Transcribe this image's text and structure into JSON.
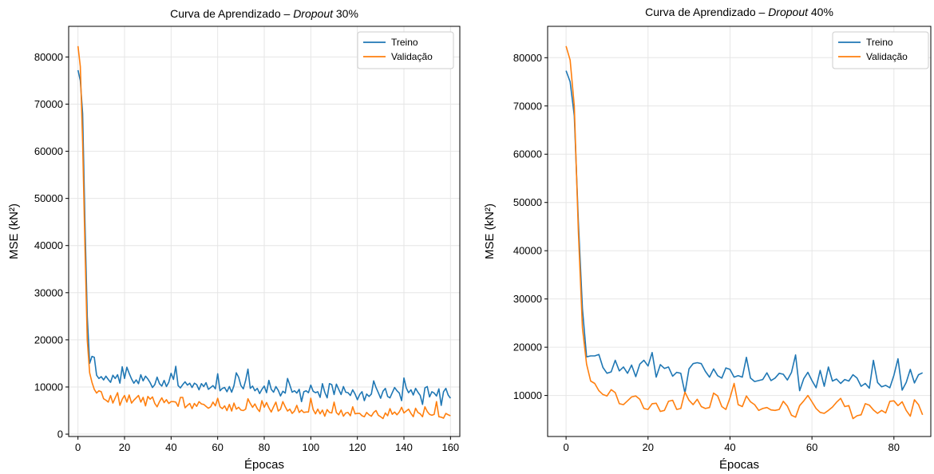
{
  "chart_data": [
    {
      "type": "line",
      "title": {
        "prefix": "Curva de Aprendizado – ",
        "italic": "Dropout",
        "suffix": " 30%"
      },
      "xlabel": "Épocas",
      "ylabel": "MSE (kN²)",
      "xlim": [
        -4,
        164
      ],
      "ylim": [
        -500,
        86500
      ],
      "xticks": [
        0,
        20,
        40,
        60,
        80,
        100,
        120,
        140,
        160
      ],
      "yticks": [
        0,
        10000,
        20000,
        30000,
        40000,
        50000,
        60000,
        70000,
        80000
      ],
      "grid": true,
      "legend_position": "upper right",
      "series": [
        {
          "name": "Treino",
          "color": "#1f77b4",
          "x": [
            0,
            1,
            2,
            3,
            4,
            5,
            6,
            7,
            8,
            9,
            10,
            11,
            12,
            13,
            14,
            15,
            16,
            17,
            18,
            19,
            20,
            21,
            22,
            23,
            24,
            25,
            26,
            27,
            28,
            29,
            30,
            31,
            32,
            33,
            34,
            35,
            36,
            37,
            38,
            39,
            40,
            41,
            42,
            43,
            44,
            45,
            46,
            47,
            48,
            49,
            50,
            51,
            52,
            53,
            54,
            55,
            56,
            57,
            58,
            59,
            60,
            61,
            62,
            63,
            64,
            65,
            66,
            67,
            68,
            69,
            70,
            71,
            72,
            73,
            74,
            75,
            76,
            77,
            78,
            79,
            80,
            81,
            82,
            83,
            84,
            85,
            86,
            87,
            88,
            89,
            90,
            91,
            92,
            93,
            94,
            95,
            96,
            97,
            98,
            99,
            100,
            101,
            102,
            103,
            104,
            105,
            106,
            107,
            108,
            109,
            110,
            111,
            112,
            113,
            114,
            115,
            116,
            117,
            118,
            119,
            120,
            121,
            122,
            123,
            124,
            125,
            126,
            127,
            128,
            129,
            130,
            131,
            132,
            133,
            134,
            135,
            136,
            137,
            138,
            139,
            140,
            141,
            142,
            143,
            144,
            145,
            146,
            147,
            148,
            149,
            150,
            151,
            152,
            153,
            154,
            155,
            156,
            157,
            158,
            159,
            160
          ],
          "y": [
            77200,
            75000,
            68000,
            45000,
            25000,
            15000,
            16500,
            16300,
            12500,
            11800,
            12200,
            11500,
            12300,
            11600,
            11000,
            12500,
            11800,
            12600,
            10800,
            14300,
            11800,
            14200,
            12900,
            11700,
            10800,
            11500,
            10700,
            12600,
            11300,
            12300,
            11700,
            10900,
            9900,
            10500,
            12100,
            10700,
            10200,
            11400,
            10100,
            11000,
            12900,
            11600,
            14400,
            10300,
            9800,
            10500,
            11100,
            10400,
            10800,
            9900,
            10800,
            10500,
            9400,
            10700,
            10100,
            10900,
            9500,
            9900,
            10300,
            9600,
            12800,
            9200,
            9700,
            9900,
            9000,
            10100,
            8900,
            10300,
            13000,
            12100,
            10300,
            9600,
            11400,
            13800,
            9700,
            10200,
            9200,
            9700,
            8600,
            9500,
            10200,
            8800,
            11400,
            9500,
            8900,
            10100,
            9300,
            8100,
            9100,
            8700,
            11800,
            10400,
            8900,
            9200,
            8700,
            9500,
            6900,
            9000,
            9200,
            8800,
            10400,
            9100,
            8800,
            9000,
            7800,
            10700,
            8900,
            7700,
            10700,
            10500,
            8400,
            10600,
            9500,
            8400,
            10100,
            8900,
            8800,
            8200,
            9400,
            8500,
            7300,
            8400,
            9000,
            7100,
            8500,
            8000,
            8500,
            11300,
            9900,
            8800,
            7600,
            9100,
            9700,
            8000,
            7700,
            8800,
            9900,
            9200,
            8700,
            7100,
            11900,
            9800,
            8800,
            9400,
            8300,
            9700,
            8900,
            8200,
            6300,
            9800,
            10100,
            7900,
            9000,
            8700,
            8100,
            9600,
            6100,
            9000,
            9700,
            8300,
            7600
          ]
        },
        {
          "name": "Validação",
          "color": "#ff7f0e",
          "x": [
            0,
            1,
            2,
            3,
            4,
            5,
            6,
            7,
            8,
            9,
            10,
            11,
            12,
            13,
            14,
            15,
            16,
            17,
            18,
            19,
            20,
            21,
            22,
            23,
            24,
            25,
            26,
            27,
            28,
            29,
            30,
            31,
            32,
            33,
            34,
            35,
            36,
            37,
            38,
            39,
            40,
            41,
            42,
            43,
            44,
            45,
            46,
            47,
            48,
            49,
            50,
            51,
            52,
            53,
            54,
            55,
            56,
            57,
            58,
            59,
            60,
            61,
            62,
            63,
            64,
            65,
            66,
            67,
            68,
            69,
            70,
            71,
            72,
            73,
            74,
            75,
            76,
            77,
            78,
            79,
            80,
            81,
            82,
            83,
            84,
            85,
            86,
            87,
            88,
            89,
            90,
            91,
            92,
            93,
            94,
            95,
            96,
            97,
            98,
            99,
            100,
            101,
            102,
            103,
            104,
            105,
            106,
            107,
            108,
            109,
            110,
            111,
            112,
            113,
            114,
            115,
            116,
            117,
            118,
            119,
            120,
            121,
            122,
            123,
            124,
            125,
            126,
            127,
            128,
            129,
            130,
            131,
            132,
            133,
            134,
            135,
            136,
            137,
            138,
            139,
            140,
            141,
            142,
            143,
            144,
            145,
            146,
            147,
            148,
            149,
            150,
            151,
            152,
            153,
            154,
            155,
            156,
            157,
            158,
            159,
            160
          ],
          "y": [
            82300,
            78000,
            62000,
            40000,
            20000,
            13000,
            11000,
            9500,
            8700,
            9200,
            9000,
            7500,
            7200,
            6800,
            8200,
            6600,
            7700,
            8800,
            6100,
            7400,
            8200,
            6800,
            8300,
            6600,
            7200,
            7700,
            8200,
            6800,
            7800,
            6000,
            8000,
            7400,
            7900,
            6500,
            5800,
            6900,
            7700,
            6700,
            7300,
            6500,
            6900,
            6900,
            6800,
            5900,
            7800,
            7800,
            5600,
            6100,
            6500,
            5400,
            6500,
            5900,
            6900,
            6400,
            6300,
            5900,
            5500,
            5800,
            6800,
            6000,
            7600,
            5800,
            5400,
            6000,
            5000,
            6300,
            4900,
            6600,
            5300,
            5700,
            5100,
            5000,
            5300,
            7500,
            6500,
            5700,
            6400,
            5400,
            4800,
            7100,
            5700,
            6700,
            5600,
            4700,
            5800,
            6800,
            4900,
            5300,
            6900,
            5800,
            4900,
            5300,
            4400,
            4900,
            6100,
            4600,
            5100,
            4600,
            4700,
            4700,
            7600,
            5200,
            4300,
            5300,
            4300,
            5100,
            3800,
            5200,
            4600,
            4500,
            6800,
            4600,
            4100,
            5100,
            3800,
            4500,
            4600,
            3900,
            5800,
            4300,
            4400,
            4400,
            3900,
            3700,
            4600,
            4100,
            3800,
            4600,
            5000,
            4000,
            3700,
            3300,
            4500,
            3900,
            5400,
            4200,
            4700,
            4100,
            4700,
            5700,
            4500,
            4900,
            5300,
            4400,
            3700,
            5500,
            4600,
            4300,
            3700,
            5800,
            4800,
            4200,
            4000,
            4200,
            6900,
            3700,
            3600,
            3400,
            4400,
            4100,
            3900
          ]
        }
      ]
    },
    {
      "type": "line",
      "title": {
        "prefix": "Curva de Aprendizado – ",
        "italic": "Dropout",
        "suffix": " 40%"
      },
      "xlabel": "Épocas",
      "ylabel": "MSE (kN²)",
      "xlim": [
        -4.5,
        89
      ],
      "ylim": [
        1500,
        86500
      ],
      "xticks": [
        0,
        20,
        40,
        60,
        80
      ],
      "yticks": [
        10000,
        20000,
        30000,
        40000,
        50000,
        60000,
        70000,
        80000
      ],
      "grid": true,
      "legend_position": "upper right",
      "series": [
        {
          "name": "Treino",
          "color": "#1f77b4",
          "x": [
            0,
            1,
            2,
            3,
            4,
            5,
            6,
            7,
            8,
            9,
            10,
            11,
            12,
            13,
            14,
            15,
            16,
            17,
            18,
            19,
            20,
            21,
            22,
            23,
            24,
            25,
            26,
            27,
            28,
            29,
            30,
            31,
            32,
            33,
            34,
            35,
            36,
            37,
            38,
            39,
            40,
            41,
            42,
            43,
            44,
            45,
            46,
            47,
            48,
            49,
            50,
            51,
            52,
            53,
            54,
            55,
            56,
            57,
            58,
            59,
            60,
            61,
            62,
            63,
            64,
            65,
            66,
            67,
            68,
            69,
            70,
            71,
            72,
            73,
            74,
            75,
            76,
            77,
            78,
            79,
            80,
            81,
            82,
            83,
            84,
            85,
            86,
            87
          ],
          "y": [
            77300,
            75000,
            68000,
            46000,
            28000,
            18000,
            18200,
            18200,
            18500,
            15800,
            14600,
            14900,
            17300,
            15100,
            15900,
            14600,
            16300,
            13900,
            16500,
            17300,
            16100,
            18900,
            13800,
            16400,
            15600,
            15900,
            14000,
            14800,
            14600,
            10500,
            15500,
            16600,
            16800,
            16600,
            15000,
            13800,
            15500,
            14100,
            13600,
            15700,
            15400,
            13800,
            14100,
            13800,
            17900,
            13600,
            12900,
            13100,
            13300,
            14700,
            13100,
            13600,
            14600,
            14400,
            13200,
            14800,
            18400,
            11000,
            13500,
            14800,
            13100,
            11600,
            15200,
            11900,
            15900,
            13000,
            13400,
            12500,
            13300,
            13000,
            14300,
            13600,
            11900,
            12500,
            11500,
            17300,
            12700,
            11800,
            12100,
            11600,
            14200,
            17600,
            11100,
            12700,
            15400,
            12600,
            14300,
            14700
          ]
        },
        {
          "name": "Validação",
          "color": "#ff7f0e",
          "x": [
            0,
            1,
            2,
            3,
            4,
            5,
            6,
            7,
            8,
            9,
            10,
            11,
            12,
            13,
            14,
            15,
            16,
            17,
            18,
            19,
            20,
            21,
            22,
            23,
            24,
            25,
            26,
            27,
            28,
            29,
            30,
            31,
            32,
            33,
            34,
            35,
            36,
            37,
            38,
            39,
            40,
            41,
            42,
            43,
            44,
            45,
            46,
            47,
            48,
            49,
            50,
            51,
            52,
            53,
            54,
            55,
            56,
            57,
            58,
            59,
            60,
            61,
            62,
            63,
            64,
            65,
            66,
            67,
            68,
            69,
            70,
            71,
            72,
            73,
            74,
            75,
            76,
            77,
            78,
            79,
            80,
            81,
            82,
            83,
            84,
            85,
            86,
            87
          ],
          "y": [
            82400,
            79500,
            70000,
            44000,
            24000,
            16500,
            13000,
            12500,
            11000,
            10200,
            9900,
            11200,
            10600,
            8300,
            8100,
            8900,
            9700,
            9900,
            9200,
            7300,
            7100,
            8300,
            8400,
            6700,
            6900,
            8800,
            9000,
            7100,
            7300,
            10700,
            9000,
            8100,
            9200,
            7700,
            7300,
            7500,
            10500,
            9900,
            7700,
            7100,
            9500,
            12500,
            8100,
            7700,
            9900,
            8700,
            8100,
            6900,
            7300,
            7500,
            7000,
            6900,
            7100,
            8800,
            7800,
            5900,
            5500,
            7900,
            8900,
            10000,
            8700,
            7300,
            6500,
            6300,
            6900,
            7600,
            8600,
            9400,
            7700,
            7900,
            5200,
            5800,
            6000,
            8300,
            8000,
            7000,
            6300,
            6900,
            6400,
            8800,
            8900,
            7900,
            8700,
            6900,
            5700,
            9100,
            8100,
            6000
          ]
        }
      ]
    }
  ]
}
